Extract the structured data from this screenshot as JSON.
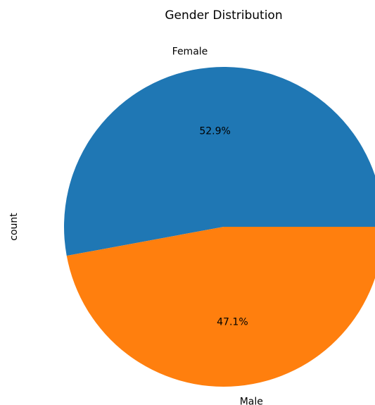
{
  "chart_data": {
    "type": "pie",
    "title": "Gender Distribution",
    "ylabel": "count",
    "categories": [
      "Female",
      "Male"
    ],
    "values": [
      52.9,
      47.1
    ],
    "value_labels": [
      "52.9%",
      "47.1%"
    ],
    "colors": [
      "#1f77b4",
      "#ff7f0e"
    ]
  }
}
